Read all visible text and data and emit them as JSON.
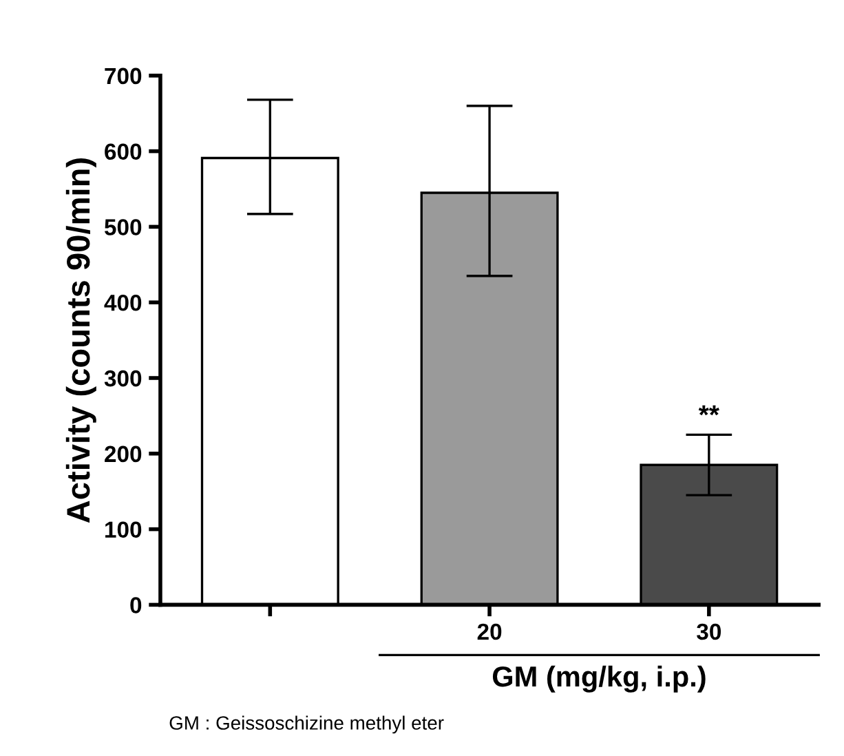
{
  "chart_data": {
    "type": "bar",
    "ylabel": "Activity (counts 90/min)",
    "xlabel": "GM (mg/kg, i.p.)",
    "categories": [
      null,
      "20",
      "30"
    ],
    "values": [
      591,
      545,
      185
    ],
    "errors": [
      [
        517,
        668
      ],
      [
        435,
        660
      ],
      [
        145,
        225
      ]
    ],
    "colors": [
      "#ffffff",
      "#9a9a9a",
      "#4a4a4a"
    ],
    "ylim": [
      0,
      700
    ],
    "yticks": [
      0,
      100,
      200,
      300,
      400,
      500,
      600,
      700
    ],
    "grid": false,
    "annotations": [
      {
        "text": "**",
        "x": "30",
        "y": 232
      },
      "GM : Geissoschizine methyl eter"
    ]
  }
}
